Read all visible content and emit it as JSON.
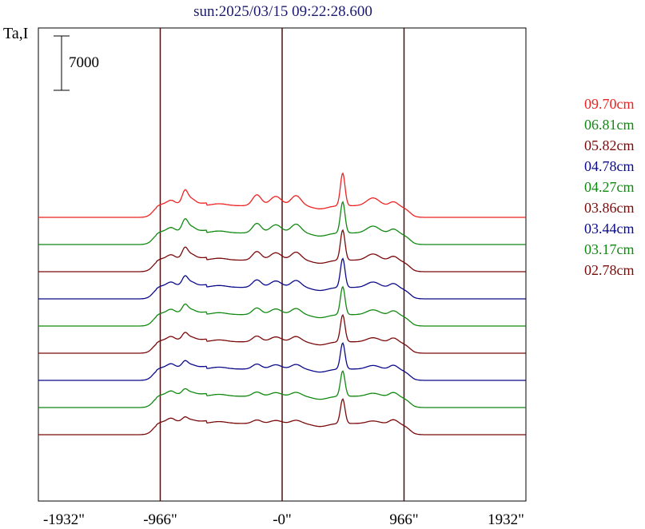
{
  "chart_data": {
    "type": "line",
    "title": "sun:2025/03/15 09:22:28.600",
    "ylabel": "Ta,I",
    "scale_bar_label": "7000",
    "scale_bar_value": 7000,
    "x_ticks": [
      "-1932\"",
      "-966\"",
      "-0\"",
      "966\"",
      "1932\""
    ],
    "x_tick_values": [
      -1932,
      -966,
      0,
      966,
      1932
    ],
    "xlim": [
      -1932,
      1932
    ],
    "vertical_markers": [
      -966,
      0,
      966
    ],
    "marker_color": "#4a1010",
    "legend_position": "right",
    "series": [
      {
        "name": "09.70cm",
        "color": "#ee2222",
        "baseline": 0,
        "scale": 1.0
      },
      {
        "name": "06.81cm",
        "color": "#118811",
        "baseline": -3500,
        "scale": 0.88
      },
      {
        "name": "05.82cm",
        "color": "#7a0a0a",
        "baseline": -7000,
        "scale": 0.8
      },
      {
        "name": "04.78cm",
        "color": "#0a0a8a",
        "baseline": -10500,
        "scale": 0.7
      },
      {
        "name": "04.27cm",
        "color": "#118811",
        "baseline": -14000,
        "scale": 0.62
      },
      {
        "name": "03.86cm",
        "color": "#7a0a0a",
        "baseline": -17500,
        "scale": 0.54
      },
      {
        "name": "03.44cm",
        "color": "#0a0a8a",
        "baseline": -21000,
        "scale": 0.47
      },
      {
        "name": "03.17cm",
        "color": "#118811",
        "baseline": -24500,
        "scale": 0.4
      },
      {
        "name": "02.78cm",
        "color": "#7a0a0a",
        "baseline": -28000,
        "scale": 0.33
      }
    ]
  }
}
